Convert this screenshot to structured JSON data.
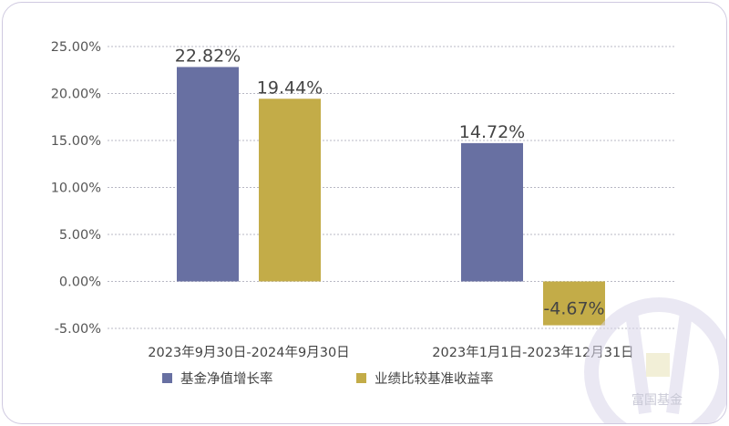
{
  "chart_data": {
    "type": "bar",
    "categories": [
      "2023年9月30日-2024年9月30日",
      "2023年1月1日-2023年12月31日"
    ],
    "series": [
      {
        "name": "基金净值增长率",
        "color": "#6870a2",
        "values": [
          22.82,
          14.72
        ],
        "labels": [
          "22.82%",
          "14.72%"
        ]
      },
      {
        "name": "业绩比较基准收益率",
        "color": "#c3ac48",
        "values": [
          19.44,
          -4.67
        ],
        "labels": [
          "19.44%",
          "-4.67%"
        ]
      }
    ],
    "yticks": [
      "25.00%",
      "20.00%",
      "15.00%",
      "10.00%",
      "5.00%",
      "0.00%",
      "-5.00%"
    ],
    "ytick_values": [
      25,
      20,
      15,
      10,
      5,
      0,
      -5
    ],
    "ylim": [
      -5,
      25
    ],
    "grid": true,
    "legend_position": "bottom-left"
  },
  "watermark": {
    "text": "富国基金",
    "icon": "fuguo-logo-icon"
  }
}
